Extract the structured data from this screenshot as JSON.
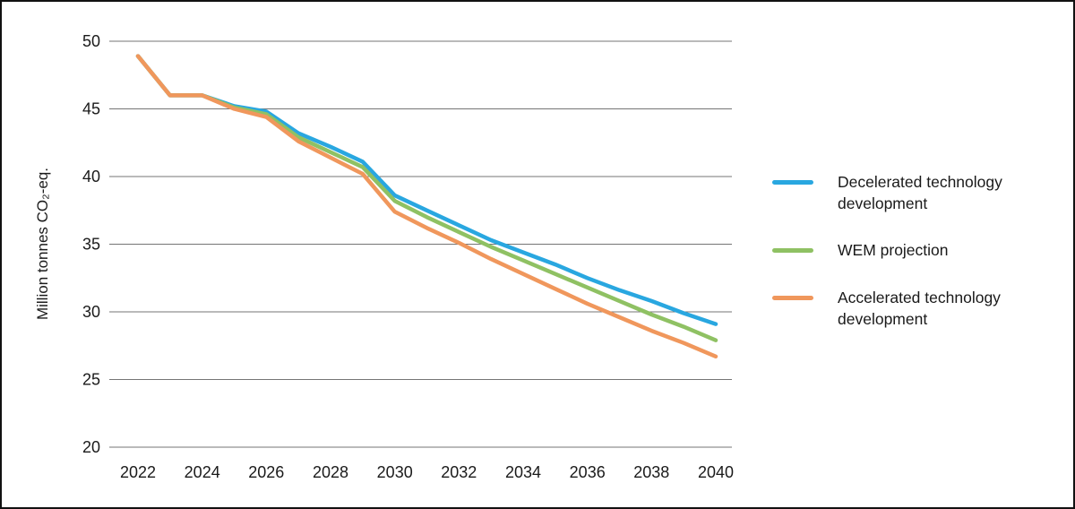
{
  "colors": {
    "background": "#ffffff",
    "border": "#111111",
    "grid": "#757575",
    "text": "#1a1a1a"
  },
  "chart_data": {
    "type": "line",
    "title": "",
    "xlabel": "",
    "ylabel": "Million tonnes CO₂-eq.",
    "xlim": [
      2022,
      2040
    ],
    "ylim": [
      20,
      50
    ],
    "grid": true,
    "legend_position": "right",
    "x": [
      2022,
      2023,
      2024,
      2025,
      2026,
      2027,
      2028,
      2029,
      2030,
      2031,
      2032,
      2033,
      2034,
      2035,
      2036,
      2037,
      2038,
      2039,
      2040
    ],
    "x_ticks": [
      2022,
      2024,
      2026,
      2028,
      2030,
      2032,
      2034,
      2036,
      2038,
      2040
    ],
    "y_ticks": [
      20,
      25,
      30,
      35,
      40,
      45,
      50
    ],
    "series": [
      {
        "name": "Decelerated technology development",
        "color": "#29A7E0",
        "values": [
          48.9,
          46.0,
          46.0,
          45.2,
          44.8,
          43.2,
          42.2,
          41.1,
          38.6,
          37.5,
          36.4,
          35.3,
          34.4,
          33.5,
          32.5,
          31.6,
          30.8,
          29.9,
          29.1
        ]
      },
      {
        "name": "WEM projection",
        "color": "#8FC163",
        "values": [
          48.9,
          46.0,
          46.0,
          45.1,
          44.6,
          42.9,
          41.8,
          40.7,
          38.2,
          37.0,
          35.9,
          34.8,
          33.8,
          32.8,
          31.8,
          30.8,
          29.8,
          28.9,
          27.9
        ]
      },
      {
        "name": "Accelerated technology development",
        "color": "#F0975C",
        "values": [
          48.9,
          46.0,
          46.0,
          45.0,
          44.4,
          42.6,
          41.4,
          40.2,
          37.4,
          36.2,
          35.1,
          33.9,
          32.8,
          31.7,
          30.6,
          29.6,
          28.6,
          27.7,
          26.7
        ]
      }
    ]
  }
}
